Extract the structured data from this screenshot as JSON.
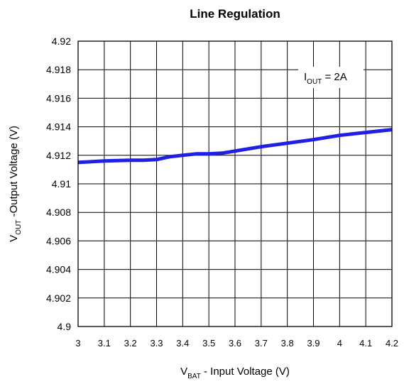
{
  "chart_data": {
    "type": "line",
    "title": "Line Regulation",
    "xlabel": {
      "main": "V",
      "sub": "BAT",
      "rest": " - Input Voltage (V)"
    },
    "ylabel": {
      "main": "V",
      "sub": "OUT",
      "rest": " -Output Voltage (V)"
    },
    "xlim": [
      3,
      4.2
    ],
    "ylim": [
      4.9,
      4.92
    ],
    "x_ticks": [
      3,
      3.1,
      3.2,
      3.3,
      3.4,
      3.5,
      3.6,
      3.7,
      3.8,
      3.9,
      4,
      4.1,
      4.2
    ],
    "x_tick_labels": [
      "3",
      "3.1",
      "3.2",
      "3.3",
      "3.4",
      "3.5",
      "3.6",
      "3.7",
      "3.8",
      "3.9",
      "4",
      "4.1",
      "4.2"
    ],
    "y_ticks": [
      4.9,
      4.902,
      4.904,
      4.906,
      4.908,
      4.91,
      4.912,
      4.914,
      4.916,
      4.918,
      4.92
    ],
    "y_tick_labels": [
      "4.9",
      "4.902",
      "4.904",
      "4.906",
      "4.908",
      "4.91",
      "4.912",
      "4.914",
      "4.916",
      "4.918",
      "4.92"
    ],
    "grid": true,
    "annotation": {
      "main": "I",
      "sub": "OUT",
      "rest": " = 2A"
    },
    "series": [
      {
        "color": "#1f1fe6",
        "x": [
          3.0,
          3.1,
          3.2,
          3.25,
          3.3,
          3.35,
          3.45,
          3.5,
          3.55,
          3.6,
          3.7,
          3.8,
          3.9,
          4.0,
          4.1,
          4.2
        ],
        "y": [
          4.9115,
          4.9116,
          4.91165,
          4.91165,
          4.9117,
          4.9119,
          4.9121,
          4.9121,
          4.91215,
          4.9123,
          4.9126,
          4.91285,
          4.9131,
          4.9134,
          4.9136,
          4.9138
        ]
      }
    ]
  }
}
